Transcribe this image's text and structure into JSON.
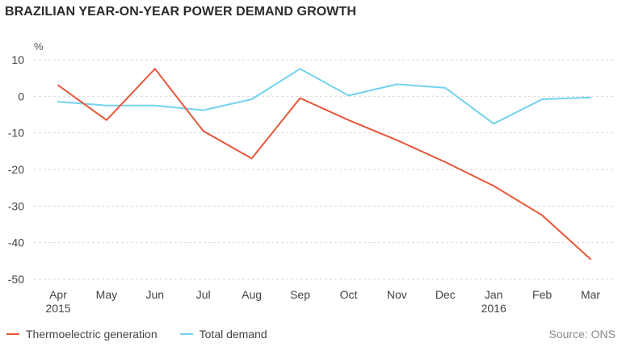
{
  "title": "BRAZILIAN YEAR-ON-YEAR POWER DEMAND GROWTH",
  "source": "Source: ONS",
  "chart_data": {
    "type": "line",
    "unit": "%",
    "categories": [
      "Apr",
      "May",
      "Jun",
      "Jul",
      "Aug",
      "Sep",
      "Oct",
      "Nov",
      "Dec",
      "Jan",
      "Feb",
      "Mar"
    ],
    "category_sublabels": [
      "2015",
      "",
      "",
      "",
      "",
      "",
      "",
      "",
      "",
      "2016",
      "",
      ""
    ],
    "ylim": [
      -50,
      10
    ],
    "yticks": [
      10,
      0,
      -10,
      -20,
      -30,
      -40,
      -50
    ],
    "grid": true,
    "legend_position": "bottom-left",
    "series": [
      {
        "name": "Thermoelectric generation",
        "color": "#e8573a",
        "values": [
          3,
          -6.5,
          7.5,
          -9.5,
          -17,
          -0.5,
          -6.5,
          -12,
          -18,
          -24.5,
          -32.5,
          -44.5
        ]
      },
      {
        "name": "Total demand",
        "color": "#72d2ef",
        "values": [
          -1.5,
          -2.5,
          -2.5,
          -3.8,
          -0.8,
          7.5,
          0.2,
          3.3,
          2.3,
          -7.5,
          -0.8,
          -0.3
        ]
      }
    ]
  }
}
